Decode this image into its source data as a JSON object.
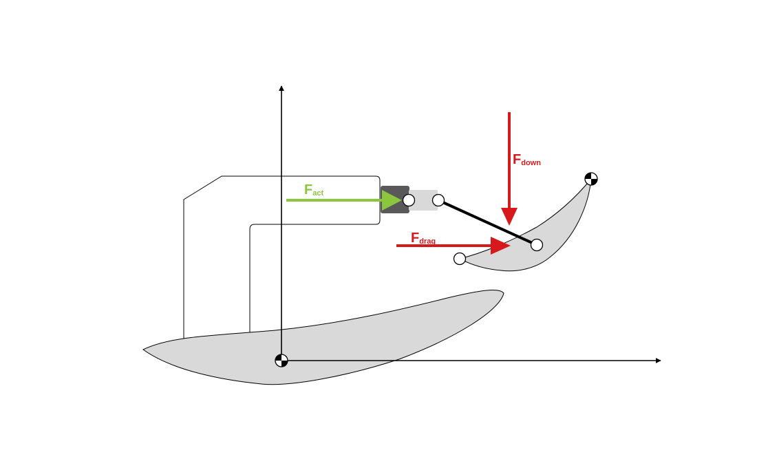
{
  "colors": {
    "background": "#ffffff",
    "axis": "#000000",
    "airfoil_fill": "#d9d9d9",
    "airfoil_stroke": "#000000",
    "actuator_dark": "#595959",
    "actuator_light": "#d9d9d9",
    "linkage": "#000000",
    "force_actuator": "#8cc63f",
    "force_aero": "#d7191c"
  },
  "forces": {
    "actuator": {
      "main": "F",
      "sub": "act"
    },
    "downforce": {
      "main": "F",
      "sub": "down"
    },
    "drag": {
      "main": "F",
      "sub": "drag"
    }
  }
}
